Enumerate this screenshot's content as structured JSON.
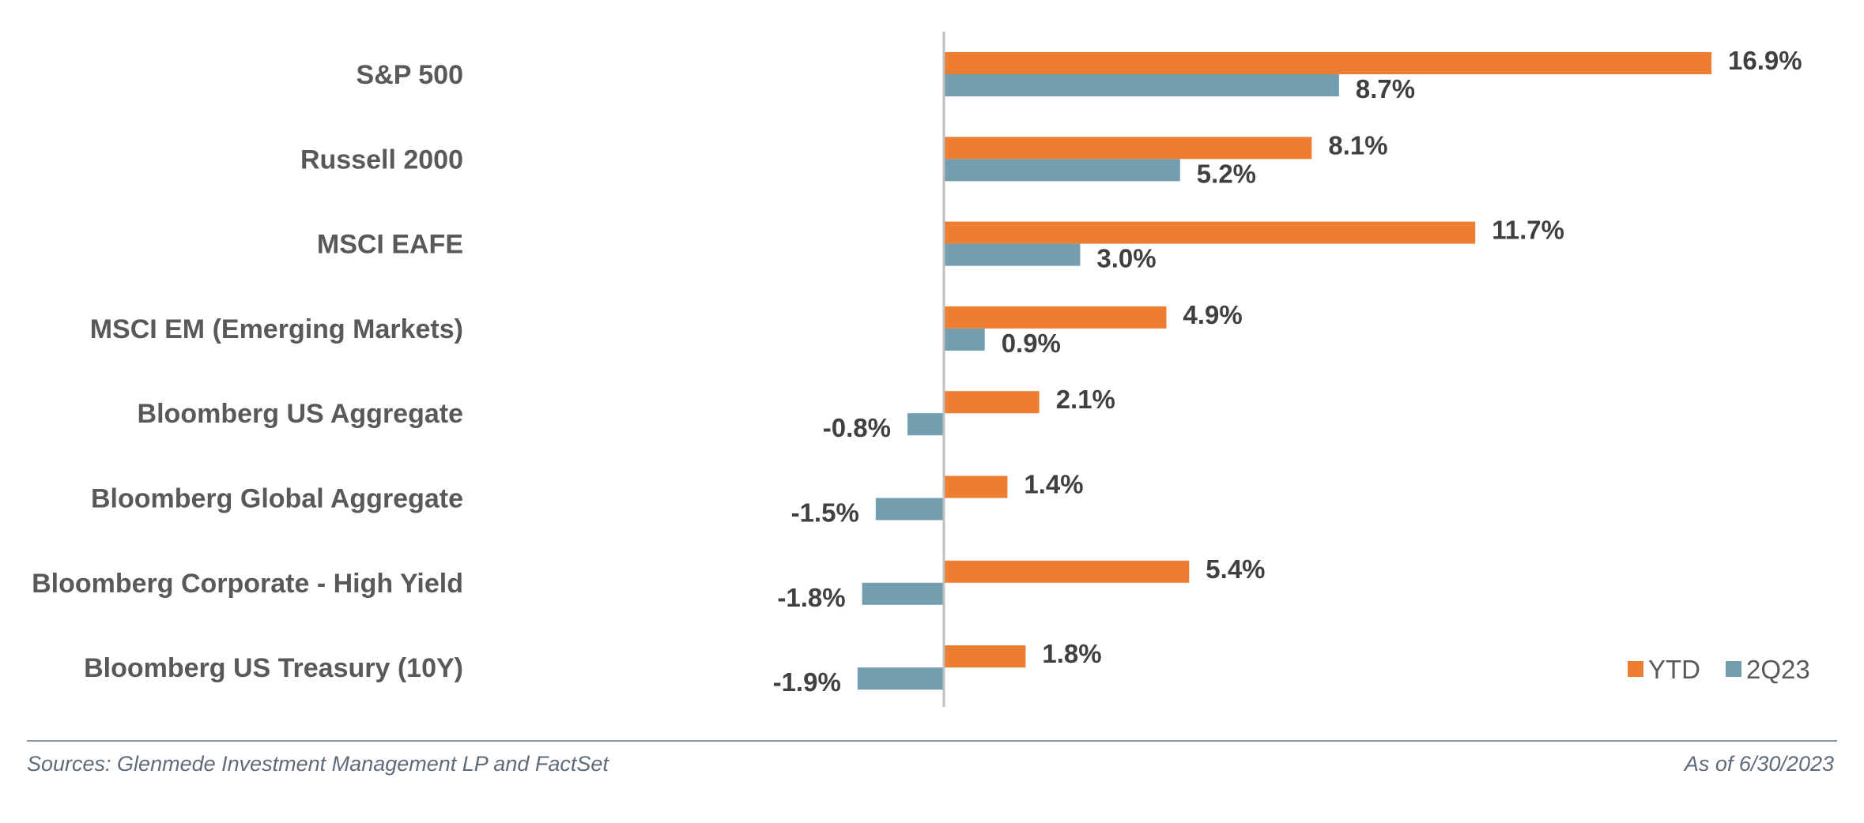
{
  "chart_data": {
    "type": "bar",
    "orientation": "horizontal",
    "categories": [
      "S&P 500",
      "Russell 2000",
      "MSCI EAFE",
      "MSCI EM (Emerging Markets)",
      "Bloomberg US Aggregate",
      "Bloomberg Global Aggregate",
      "Bloomberg Corporate - High Yield",
      "Bloomberg US Treasury (10Y)"
    ],
    "series": [
      {
        "name": "YTD",
        "color": "#ED7D31",
        "values": [
          16.9,
          8.1,
          11.7,
          4.9,
          2.1,
          1.4,
          5.4,
          1.8
        ],
        "labels": [
          "16.9%",
          "8.1%",
          "11.7%",
          "4.9%",
          "2.1%",
          "1.4%",
          "5.4%",
          "1.8%"
        ]
      },
      {
        "name": "2Q23",
        "color": "#739EAF",
        "values": [
          8.7,
          5.2,
          3.0,
          0.9,
          -0.8,
          -1.5,
          -1.8,
          -1.9
        ],
        "labels": [
          "8.7%",
          "5.2%",
          "3.0%",
          "0.9%",
          "-0.8%",
          "-1.5%",
          "-1.8%",
          "-1.9%"
        ]
      }
    ],
    "legend_position": "bottom-right",
    "grid": false
  },
  "footer": {
    "source": "Sources: Glenmede Investment Management LP and FactSet",
    "date": "As of 6/30/2023"
  }
}
